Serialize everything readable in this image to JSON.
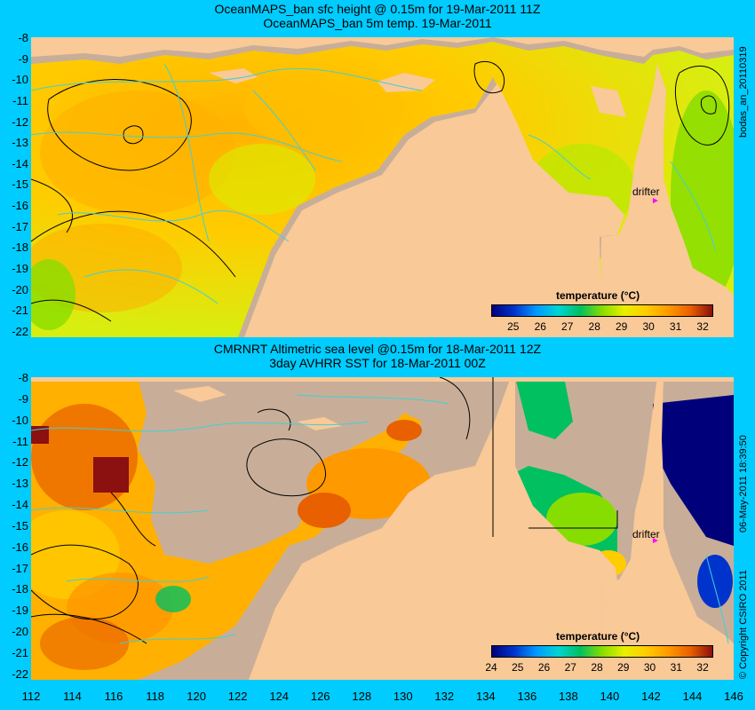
{
  "top_panel": {
    "title_line1": "OceanMAPS_ban sfc height @ 0.15m for 19-Mar-2011 11Z",
    "title_line2": "OceanMAPS_ban 5m temp. 19-Mar-2011",
    "side_label": "bodas_an_20110319",
    "legend_title": "temperature (°C)",
    "colorbar_labels": [
      "25",
      "26",
      "27",
      "28",
      "29",
      "30",
      "31",
      "32"
    ],
    "drifter_label": "drifter"
  },
  "bottom_panel": {
    "title_line1": "CMRNRT Altimetric sea level  @0.15m  for 18-Mar-2011 12Z",
    "title_line2": "3day AVHRR SST for 18-Mar-2011 00Z",
    "side_label": "06-May-2011 18:39:50",
    "copyright": "© Copyright CSIRO 2011",
    "legend_title": "temperature (°C)",
    "colorbar_labels": [
      "24",
      "25",
      "26",
      "27",
      "28",
      "29",
      "30",
      "31",
      "32"
    ],
    "drifter_label": "drifter"
  },
  "axes": {
    "y_ticks": [
      "-8",
      "-9",
      "-10",
      "-11",
      "-12",
      "-13",
      "-14",
      "-15",
      "-16",
      "-17",
      "-18",
      "-19",
      "-20",
      "-21",
      "-22"
    ],
    "x_ticks": [
      "112",
      "114",
      "116",
      "118",
      "120",
      "122",
      "124",
      "126",
      "128",
      "130",
      "132",
      "134",
      "136",
      "138",
      "140",
      "142",
      "144",
      "146"
    ]
  },
  "colors": {
    "page_background": "#00ccff",
    "land": "#f9c998",
    "missing_data": "#c8ae98",
    "drifter_marker": "#ff00ff",
    "contour_ssh": "#000000",
    "contour_temp": "#40d0d8",
    "colorscale": [
      "#00007a",
      "#0033cc",
      "#0099ff",
      "#00d4d4",
      "#00c060",
      "#88dd00",
      "#e8f000",
      "#ffcc00",
      "#ff9900",
      "#e86000",
      "#8b1010"
    ]
  },
  "icons": {
    "drifter": "triangle-marker"
  }
}
